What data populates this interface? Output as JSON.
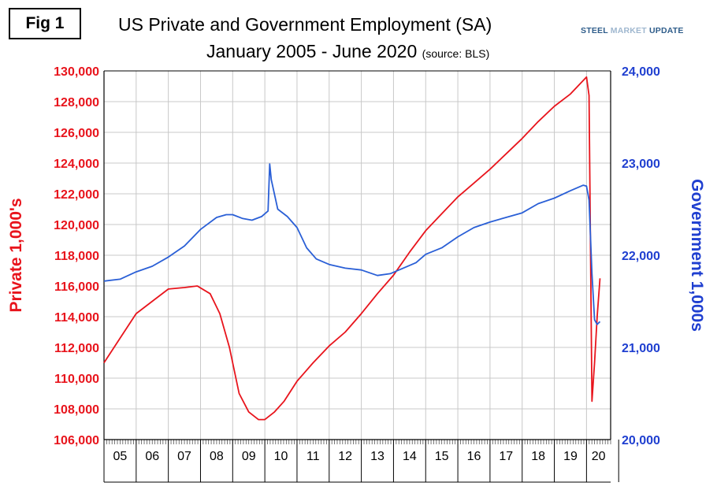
{
  "figure_label": "Fig 1",
  "brand": {
    "part1": "STEEL ",
    "part2": "MARKET",
    "part3": " UPDATE"
  },
  "colors": {
    "private": "#e8141c",
    "government": "#2a5fd6",
    "axis_left": "#e8141c",
    "axis_right": "#1f3fd0",
    "grid": "#c8c8c8"
  },
  "chart_data": {
    "type": "line",
    "title": "US Private and Government Employment (SA)",
    "subtitle": "January 2005 - June 2020",
    "source_note": "(source: BLS)",
    "ylabel_left": "Private 1,000's",
    "ylabel_right": "Government 1,000s",
    "x_categories": [
      "05",
      "06",
      "07",
      "08",
      "09",
      "10",
      "11",
      "12",
      "13",
      "14",
      "15",
      "16",
      "17",
      "18",
      "19",
      "20"
    ],
    "ylim_left": [
      106000,
      130000
    ],
    "yticks_left": [
      "106,000",
      "108,000",
      "110,000",
      "112,000",
      "114,000",
      "116,000",
      "118,000",
      "120,000",
      "122,000",
      "124,000",
      "126,000",
      "128,000",
      "130,000"
    ],
    "ylim_right": [
      20000,
      24000
    ],
    "yticks_right": [
      "20,000",
      "21,000",
      "22,000",
      "23,000",
      "24,000"
    ],
    "grid": true,
    "series": [
      {
        "name": "Private 1,000's",
        "axis": "left",
        "x": [
          2005.0,
          2005.5,
          2006.0,
          2006.5,
          2007.0,
          2007.5,
          2007.9,
          2008.3,
          2008.6,
          2008.9,
          2009.2,
          2009.5,
          2009.8,
          2010.0,
          2010.3,
          2010.6,
          2011.0,
          2011.5,
          2012.0,
          2012.5,
          2013.0,
          2013.5,
          2014.0,
          2014.5,
          2015.0,
          2015.5,
          2016.0,
          2016.5,
          2017.0,
          2017.5,
          2018.0,
          2018.5,
          2019.0,
          2019.5,
          2020.0,
          2020.08,
          2020.17,
          2020.25,
          2020.33,
          2020.42
        ],
        "values": [
          111000,
          112600,
          114200,
          115000,
          115800,
          115900,
          116000,
          115500,
          114200,
          112000,
          109000,
          107800,
          107300,
          107300,
          107800,
          108500,
          109800,
          111000,
          112100,
          113000,
          114200,
          115500,
          116700,
          118200,
          119600,
          120700,
          121800,
          122700,
          123600,
          124600,
          125600,
          126700,
          127700,
          128500,
          129600,
          128400,
          108500,
          111000,
          114000,
          116500
        ]
      },
      {
        "name": "Government 1,000s",
        "axis": "right",
        "x": [
          2005.0,
          2005.5,
          2006.0,
          2006.5,
          2007.0,
          2007.5,
          2008.0,
          2008.5,
          2008.8,
          2009.0,
          2009.3,
          2009.6,
          2009.9,
          2010.1,
          2010.15,
          2010.2,
          2010.4,
          2010.7,
          2011.0,
          2011.3,
          2011.6,
          2012.0,
          2012.5,
          2013.0,
          2013.5,
          2013.9,
          2014.3,
          2014.7,
          2015.0,
          2015.5,
          2016.0,
          2016.5,
          2017.0,
          2017.5,
          2018.0,
          2018.5,
          2019.0,
          2019.5,
          2019.9,
          2020.0,
          2020.08,
          2020.17,
          2020.25,
          2020.33,
          2020.42
        ],
        "values": [
          21720,
          21740,
          21820,
          21880,
          21980,
          22100,
          22280,
          22410,
          22440,
          22440,
          22400,
          22380,
          22420,
          22480,
          22990,
          22820,
          22500,
          22420,
          22300,
          22080,
          21960,
          21900,
          21860,
          21840,
          21780,
          21800,
          21860,
          21920,
          22010,
          22080,
          22200,
          22300,
          22360,
          22410,
          22460,
          22560,
          22620,
          22700,
          22760,
          22750,
          22600,
          21800,
          21300,
          21250,
          21280
        ]
      }
    ]
  }
}
